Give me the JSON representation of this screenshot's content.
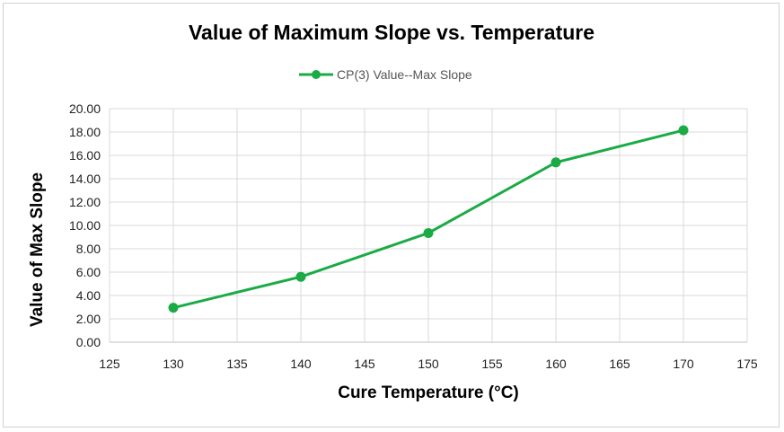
{
  "chart_data": {
    "type": "line",
    "title": "Value of Maximum Slope vs. Temperature",
    "xlabel": "Cure Temperature (°C)",
    "ylabel": "Value of Max Slope",
    "xlim": [
      125,
      175
    ],
    "ylim": [
      0,
      20
    ],
    "x_ticks": [
      "125",
      "130",
      "135",
      "140",
      "145",
      "150",
      "155",
      "160",
      "165",
      "170",
      "175"
    ],
    "y_ticks": [
      "0.00",
      "2.00",
      "4.00",
      "6.00",
      "8.00",
      "10.00",
      "12.00",
      "14.00",
      "16.00",
      "18.00",
      "20.00"
    ],
    "grid": true,
    "legend_position": "top-center",
    "series": [
      {
        "name": "CP(3) Value--Max Slope",
        "color": "#1aab45",
        "x": [
          130,
          140,
          150,
          160,
          170
        ],
        "y": [
          2.95,
          5.6,
          9.35,
          15.4,
          18.15
        ]
      }
    ]
  }
}
